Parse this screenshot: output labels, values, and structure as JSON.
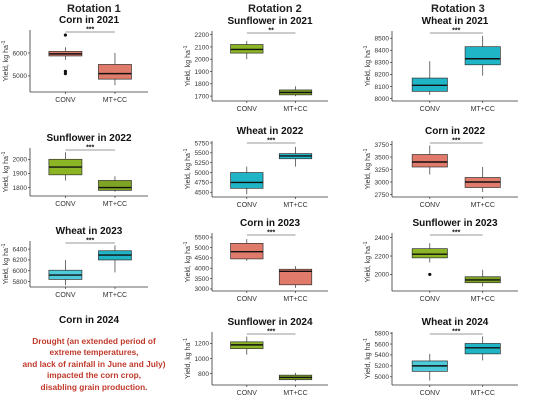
{
  "headers": [
    "Rotation 1",
    "Rotation 2",
    "Rotation 3"
  ],
  "yaxis_label": "Yield, kg ha",
  "yaxis_sup": "-1",
  "drought_title": "Corn in 2024",
  "drought_lines": [
    "Drought (an extended period of",
    "extreme temperatures,",
    "and lack of rainfall in June and July)",
    "impacted the corn crop,",
    "disabling grain production."
  ],
  "colors": {
    "corn": "#e07b6b",
    "sunflower": "#7fa322",
    "wheat": "#1fb5c6",
    "conv_sunflower": "#8bb524",
    "wheat_light": "#4ecbdb"
  },
  "chart_data": [
    {
      "type": "box",
      "title": "Corn in 2021",
      "categories": [
        "CONV",
        "MT+CC"
      ],
      "yticks": [
        5000,
        6000
      ],
      "ylim": [
        4300,
        7000
      ],
      "significance": "***",
      "series": [
        {
          "name": "CONV",
          "min": 5700,
          "q1": 5870,
          "median": 5960,
          "q3": 6070,
          "max": 6250,
          "outliers": [
            6780,
            5100,
            5200
          ]
        },
        {
          "name": "MT+CC",
          "min": 4600,
          "q1": 4860,
          "median": 5100,
          "q3": 5500,
          "max": 6000,
          "outliers": []
        }
      ]
    },
    {
      "type": "box",
      "title": "Sunflower in 2021",
      "categories": [
        "CONV",
        "MT+CC"
      ],
      "yticks": [
        1700,
        1800,
        1900,
        2000,
        2100,
        2200
      ],
      "ylim": [
        1660,
        2230
      ],
      "significance": "**",
      "series": [
        {
          "name": "CONV",
          "min": 2000,
          "q1": 2050,
          "median": 2080,
          "q3": 2120,
          "max": 2150,
          "outliers": []
        },
        {
          "name": "MT+CC",
          "min": 1700,
          "q1": 1710,
          "median": 1730,
          "q3": 1750,
          "max": 1780,
          "outliers": []
        }
      ]
    },
    {
      "type": "box",
      "title": "Wheat in 2021",
      "categories": [
        "CONV",
        "MT+CC"
      ],
      "yticks": [
        8000,
        8100,
        8200,
        8300,
        8400,
        8500
      ],
      "ylim": [
        7980,
        8560
      ],
      "significance": "***",
      "series": [
        {
          "name": "CONV",
          "min": 8030,
          "q1": 8060,
          "median": 8110,
          "q3": 8170,
          "max": 8310,
          "outliers": []
        },
        {
          "name": "MT+CC",
          "min": 8190,
          "q1": 8280,
          "median": 8330,
          "q3": 8430,
          "max": 8520,
          "outliers": []
        }
      ]
    },
    {
      "type": "box",
      "title": "Sunflower in 2022",
      "categories": [
        "CONV",
        "MT+CC"
      ],
      "yticks": [
        1800,
        1900,
        2000
      ],
      "ylim": [
        1740,
        2080
      ],
      "significance": "***",
      "series": [
        {
          "name": "CONV",
          "min": 1850,
          "q1": 1890,
          "median": 1945,
          "q3": 2000,
          "max": 2050,
          "outliers": []
        },
        {
          "name": "MT+CC",
          "min": 1770,
          "q1": 1780,
          "median": 1800,
          "q3": 1850,
          "max": 1880,
          "outliers": []
        }
      ]
    },
    {
      "type": "box",
      "title": "Wheat in 2022",
      "categories": [
        "CONV",
        "MT+CC"
      ],
      "yticks": [
        4500,
        4750,
        5000,
        5250,
        5500,
        5750
      ],
      "ylim": [
        4380,
        5800
      ],
      "significance": "***",
      "series": [
        {
          "name": "CONV",
          "min": 4450,
          "q1": 4600,
          "median": 4750,
          "q3": 5000,
          "max": 5150,
          "outliers": []
        },
        {
          "name": "MT+CC",
          "min": 5150,
          "q1": 5350,
          "median": 5420,
          "q3": 5480,
          "max": 5650,
          "outliers": []
        }
      ]
    },
    {
      "type": "box",
      "title": "Corn in 2022",
      "categories": [
        "CONV",
        "MT+CC"
      ],
      "yticks": [
        2750,
        3000,
        3250,
        3500,
        3750
      ],
      "ylim": [
        2700,
        3820
      ],
      "significance": "***",
      "series": [
        {
          "name": "CONV",
          "min": 3150,
          "q1": 3300,
          "median": 3400,
          "q3": 3550,
          "max": 3730,
          "outliers": []
        },
        {
          "name": "MT+CC",
          "min": 2800,
          "q1": 2890,
          "median": 3000,
          "q3": 3090,
          "max": 3300,
          "outliers": []
        }
      ]
    },
    {
      "type": "box",
      "title": "Wheat in 2023",
      "categories": [
        "CONV",
        "MT+CC"
      ],
      "yticks": [
        5800,
        6000,
        6200,
        6400
      ],
      "ylim": [
        5700,
        6550
      ],
      "significance": "***",
      "series": [
        {
          "name": "CONV",
          "min": 5730,
          "q1": 5840,
          "median": 5920,
          "q3": 6010,
          "max": 6200,
          "outliers": []
        },
        {
          "name": "MT+CC",
          "min": 5970,
          "q1": 6200,
          "median": 6290,
          "q3": 6370,
          "max": 6470,
          "outliers": []
        }
      ]
    },
    {
      "type": "box",
      "title": "Corn in 2023",
      "categories": [
        "CONV",
        "MT+CC"
      ],
      "yticks": [
        3000,
        3500,
        4000,
        4500,
        5000,
        5500
      ],
      "ylim": [
        2900,
        5700
      ],
      "significance": "***",
      "series": [
        {
          "name": "CONV",
          "min": 4350,
          "q1": 4450,
          "median": 4800,
          "q3": 5200,
          "max": 5400,
          "outliers": []
        },
        {
          "name": "MT+CC",
          "min": 3050,
          "q1": 3200,
          "median": 3850,
          "q3": 3950,
          "max": 4100,
          "outliers": []
        }
      ]
    },
    {
      "type": "box",
      "title": "Sunflower in 2023",
      "categories": [
        "CONV",
        "MT+CC"
      ],
      "yticks": [
        2000,
        2200,
        2400
      ],
      "ylim": [
        1820,
        2450
      ],
      "significance": "***",
      "series": [
        {
          "name": "CONV",
          "min": 2130,
          "q1": 2180,
          "median": 2220,
          "q3": 2280,
          "max": 2340,
          "outliers": [
            2000
          ]
        },
        {
          "name": "MT+CC",
          "min": 1870,
          "q1": 1910,
          "median": 1940,
          "q3": 1975,
          "max": 2050,
          "outliers": []
        }
      ]
    },
    {
      "type": "box",
      "title": "Sunflower in 2024",
      "categories": [
        "CONV",
        "MT+CC"
      ],
      "yticks": [
        800,
        1000,
        1200
      ],
      "ylim": [
        650,
        1350
      ],
      "significance": "***",
      "series": [
        {
          "name": "CONV",
          "min": 1050,
          "q1": 1130,
          "median": 1180,
          "q3": 1220,
          "max": 1290,
          "outliers": []
        },
        {
          "name": "MT+CC",
          "min": 700,
          "q1": 720,
          "median": 750,
          "q3": 780,
          "max": 810,
          "outliers": []
        }
      ]
    },
    {
      "type": "box",
      "title": "Wheat in 2024",
      "categories": [
        "CONV",
        "MT+CC"
      ],
      "yticks": [
        5000,
        5200,
        5400,
        5600,
        5800
      ],
      "ylim": [
        4850,
        5820
      ],
      "significance": "***",
      "series": [
        {
          "name": "CONV",
          "min": 4930,
          "q1": 5100,
          "median": 5200,
          "q3": 5290,
          "max": 5420,
          "outliers": []
        },
        {
          "name": "MT+CC",
          "min": 5300,
          "q1": 5420,
          "median": 5530,
          "q3": 5610,
          "max": 5740,
          "outliers": []
        }
      ]
    }
  ]
}
